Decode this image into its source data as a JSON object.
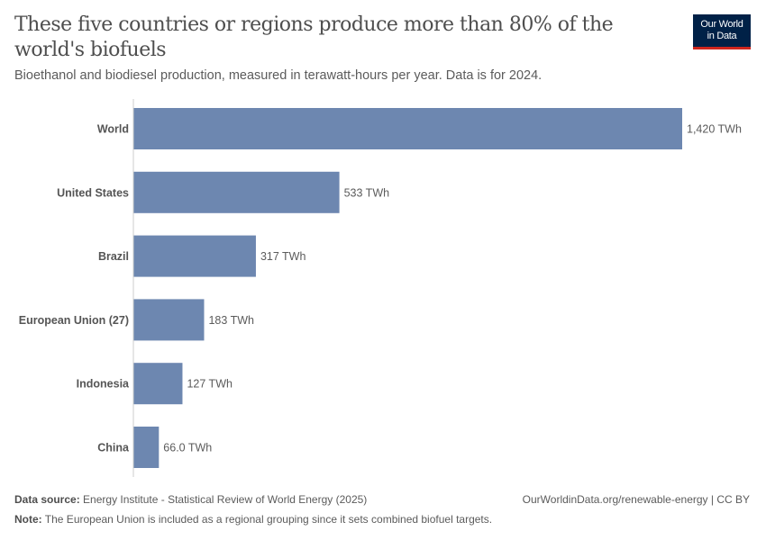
{
  "title": "These five countries or regions produce more than 80% of the world's biofuels",
  "subtitle": "Bioethanol and biodiesel production, measured in terawatt-hours per year. Data is for 2024.",
  "logo": {
    "line1": "Our World",
    "line2": "in Data"
  },
  "footer": {
    "source_label": "Data source:",
    "source": "Energy Institute - Statistical Review of World Energy (2025)",
    "url": "OurWorldinData.org/renewable-energy | CC BY",
    "note_label": "Note:",
    "note": "The European Union is included as a regional grouping since it sets combined biofuel targets."
  },
  "colors": {
    "bar": "#6d87b0"
  },
  "chart_data": {
    "type": "bar",
    "orientation": "horizontal",
    "categories": [
      "World",
      "United States",
      "Brazil",
      "European Union (27)",
      "Indonesia",
      "China"
    ],
    "values": [
      1420,
      533,
      317,
      183,
      127,
      66.0
    ],
    "data_labels": [
      "1,420 TWh",
      "533 TWh",
      "317 TWh",
      "183 TWh",
      "127 TWh",
      "66.0 TWh"
    ],
    "unit": "TWh",
    "xlim": [
      0,
      1420
    ],
    "grid": false
  }
}
